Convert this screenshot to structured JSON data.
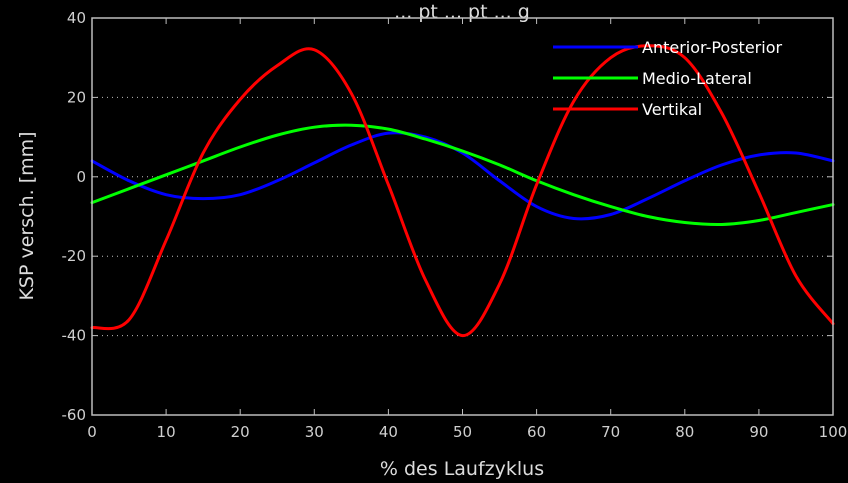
{
  "chart_data": {
    "type": "line",
    "title": "... pt ... pt ... g",
    "xlabel": "% des Laufzyklus",
    "ylabel": "KSP versch. [mm]",
    "xlim": [
      0,
      100
    ],
    "ylim": [
      -60,
      40
    ],
    "xticks": [
      0,
      10,
      20,
      30,
      40,
      50,
      60,
      70,
      80,
      90,
      100
    ],
    "yticks": [
      -60,
      -40,
      -20,
      0,
      20,
      40
    ],
    "grid": "dotted-horizontal",
    "legend_position": "top-right",
    "background": "#000000",
    "axes_color": "#bdbdbd",
    "x": [
      0,
      5,
      10,
      15,
      20,
      25,
      30,
      35,
      40,
      45,
      50,
      55,
      60,
      65,
      70,
      75,
      80,
      85,
      90,
      95,
      100
    ],
    "series": [
      {
        "name": "Anterior-Posterior",
        "color": "#0000ff",
        "values": [
          4,
          -1,
          -4.5,
          -5.5,
          -4.5,
          -1,
          3.5,
          8,
          11,
          10,
          6,
          -1,
          -7.5,
          -10.5,
          -9.5,
          -5.5,
          -1,
          3,
          5.5,
          6,
          4
        ]
      },
      {
        "name": "Medio-Lateral",
        "color": "#00ff00",
        "values": [
          -6.5,
          -3,
          0.5,
          4,
          7.5,
          10.5,
          12.5,
          13,
          12,
          9.5,
          6.5,
          3,
          -1,
          -4.5,
          -7.5,
          -10,
          -11.5,
          -12,
          -11,
          -9,
          -7
        ]
      },
      {
        "name": "Vertikal",
        "color": "#ff0000",
        "values": [
          -38,
          -36,
          -16,
          6,
          19.5,
          28,
          32,
          21,
          -2,
          -26,
          -40,
          -27,
          -2,
          19,
          30,
          33,
          30,
          16,
          -4,
          -25,
          -37
        ]
      }
    ]
  }
}
